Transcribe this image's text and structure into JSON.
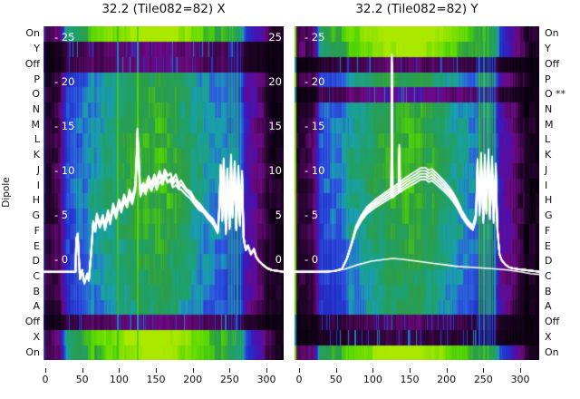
{
  "titles": {
    "left": "32.2 (Tile082=82) X",
    "right": "32.2 (Tile082=82) Y"
  },
  "axes": {
    "y_label": "Dipole",
    "x_tick_labels": [
      "0",
      "50",
      "100",
      "150",
      "200",
      "250",
      "300"
    ],
    "x_tick_values": [
      0,
      50,
      100,
      150,
      200,
      250,
      300
    ],
    "y_tick_labels_inner_left": [
      "- 25",
      "- 20",
      "- 15",
      "- 10",
      "- 5",
      "- 0"
    ],
    "y_tick_labels_inner_right": [
      "25",
      "20",
      "15",
      "10",
      "5",
      "0"
    ],
    "y_tick_values": [
      25,
      20,
      15,
      10,
      5,
      0
    ]
  },
  "row_labels_left": [
    "On",
    "Y",
    "Off",
    "P",
    "O",
    "N",
    "M",
    "L",
    "K",
    "J",
    "I",
    "H",
    "G",
    "F",
    "E",
    "D",
    "C",
    "B",
    "A",
    "Off",
    "X",
    "On"
  ],
  "row_labels_right": [
    "On",
    "Y",
    "Off",
    "P",
    "O **",
    "N",
    "M",
    "L",
    "K",
    "J",
    "I",
    "H",
    "G",
    "F",
    "E",
    "D",
    "C",
    "B",
    "A",
    "Off",
    "X",
    "On"
  ],
  "flagged_dipole": "O **",
  "colors": {
    "background": "#ffffff",
    "curve": "#ffffff",
    "label": "#111111",
    "colormap_stops": [
      [
        0.0,
        "#06010a"
      ],
      [
        0.1,
        "#24042c"
      ],
      [
        0.22,
        "#6e0a80"
      ],
      [
        0.3,
        "#4a10b0"
      ],
      [
        0.4,
        "#2030c8"
      ],
      [
        0.48,
        "#2f55e0"
      ],
      [
        0.56,
        "#18a0b0"
      ],
      [
        0.64,
        "#1fa06a"
      ],
      [
        0.72,
        "#2e9e44"
      ],
      [
        0.82,
        "#52d800"
      ],
      [
        1.0,
        "#aae800"
      ]
    ]
  },
  "chart_data": [
    {
      "type": "heatmap",
      "panel": "X",
      "title": "32.2 (Tile082=82) X",
      "x_range": [
        -3,
        324
      ],
      "y_rows": [
        "On",
        "Y",
        "Off",
        "P",
        "O",
        "N",
        "M",
        "L",
        "K",
        "J",
        "I",
        "H",
        "G",
        "F",
        "E",
        "D",
        "C",
        "B",
        "A",
        "Off",
        "X",
        "On"
      ],
      "row_gains": [
        1.45,
        0.3,
        0.3,
        0.97,
        0.99,
        1.0,
        1.02,
        1.03,
        1.04,
        1.05,
        1.05,
        1.04,
        1.02,
        1.0,
        0.98,
        0.96,
        0.94,
        0.92,
        0.9,
        0.3,
        1.45,
        1.38
      ],
      "intensity_profile": [
        [
          -6,
          0.1
        ],
        [
          5,
          0.12
        ],
        [
          18,
          0.14
        ],
        [
          24,
          0.3
        ],
        [
          28,
          0.44
        ],
        [
          40,
          0.48
        ],
        [
          55,
          0.5
        ],
        [
          65,
          0.56
        ],
        [
          75,
          0.58
        ],
        [
          90,
          0.62
        ],
        [
          105,
          0.66
        ],
        [
          120,
          0.7
        ],
        [
          135,
          0.72
        ],
        [
          150,
          0.74
        ],
        [
          165,
          0.72
        ],
        [
          180,
          0.68
        ],
        [
          195,
          0.62
        ],
        [
          210,
          0.58
        ],
        [
          225,
          0.55
        ],
        [
          235,
          0.52
        ],
        [
          245,
          0.5
        ],
        [
          255,
          0.52
        ],
        [
          265,
          0.45
        ],
        [
          272,
          0.3
        ],
        [
          280,
          0.26
        ],
        [
          290,
          0.2
        ],
        [
          300,
          0.12
        ],
        [
          308,
          0.05
        ],
        [
          326,
          0.04
        ]
      ],
      "stripes": [
        [
          -2,
          1.4,
          0.5
        ],
        [
          98,
          2,
          0.75
        ],
        [
          125,
          2,
          0.78
        ],
        [
          248,
          1.4,
          0.6
        ],
        [
          252,
          1.4,
          0.62
        ],
        [
          256,
          1.4,
          0.58
        ],
        [
          260,
          1.4,
          0.6
        ],
        [
          264,
          1.4,
          0.55
        ]
      ],
      "series": [
        {
          "name": "dipole-bandpass-bundle",
          "traces": 4,
          "jitter": 0.25,
          "line_width": 2,
          "points": [
            [
              -2,
              -1.4
            ],
            [
              41,
              -1.4
            ],
            [
              42,
              2.4
            ],
            [
              44,
              2.9
            ],
            [
              47,
              -2.2
            ],
            [
              50,
              -1.2
            ],
            [
              53,
              -2.7
            ],
            [
              57,
              -1.6
            ],
            [
              59,
              -2.4
            ],
            [
              62,
              0.6
            ],
            [
              65,
              4.3
            ],
            [
              68,
              3.5
            ],
            [
              70,
              5.2
            ],
            [
              74,
              3.9
            ],
            [
              78,
              5.1
            ],
            [
              81,
              3.7
            ],
            [
              85,
              5.5
            ],
            [
              88,
              4.5
            ],
            [
              92,
              6.2
            ],
            [
              96,
              5.2
            ],
            [
              100,
              6.9
            ],
            [
              103,
              5.9
            ],
            [
              107,
              7.2
            ],
            [
              111,
              6.5
            ],
            [
              114,
              7.8
            ],
            [
              118,
              6.9
            ],
            [
              122,
              8.3
            ],
            [
              124,
              11.8
            ],
            [
              125,
              14.7
            ],
            [
              127,
              11.3
            ],
            [
              129,
              7.8
            ],
            [
              133,
              8.8
            ],
            [
              136,
              8.1
            ],
            [
              140,
              9.2
            ],
            [
              144,
              8.5
            ],
            [
              148,
              9.6
            ],
            [
              151,
              8.9
            ],
            [
              155,
              10.0
            ],
            [
              159,
              9.2
            ],
            [
              162,
              10.2
            ],
            [
              166,
              9.5
            ],
            [
              170,
              9.8
            ],
            [
              173,
              9.1
            ],
            [
              177,
              9.4
            ],
            [
              181,
              8.6
            ],
            [
              184,
              8.9
            ],
            [
              191,
              8.1
            ],
            [
              197,
              7.6
            ],
            [
              203,
              6.9
            ],
            [
              209,
              6.3
            ],
            [
              215,
              5.7
            ],
            [
              221,
              5.1
            ],
            [
              228,
              4.4
            ],
            [
              231,
              3.9
            ],
            [
              234,
              3.2
            ],
            [
              236,
              5.7
            ],
            [
              238,
              10.8
            ],
            [
              240,
              4.7
            ],
            [
              242,
              11.3
            ],
            [
              245,
              3.2
            ],
            [
              247,
              10.3
            ],
            [
              250,
              3.7
            ],
            [
              252,
              11.6
            ],
            [
              254,
              5.2
            ],
            [
              257,
              11.0
            ],
            [
              259,
              3.7
            ],
            [
              262,
              10.6
            ],
            [
              264,
              4.2
            ],
            [
              267,
              9.8
            ],
            [
              269,
              2.5
            ],
            [
              272,
              1.1
            ],
            [
              275,
              1.6
            ],
            [
              279,
              0.6
            ],
            [
              283,
              1.2
            ],
            [
              286,
              0.3
            ],
            [
              290,
              -0.2
            ],
            [
              295,
              -0.6
            ],
            [
              301,
              -1.0
            ],
            [
              307,
              -1.2
            ],
            [
              315,
              -1.3
            ],
            [
              323,
              -1.4
            ]
          ]
        }
      ]
    },
    {
      "type": "heatmap",
      "panel": "Y",
      "title": "32.2 (Tile082=82) Y",
      "x_range": [
        -6,
        326
      ],
      "y_rows": [
        "On",
        "Y",
        "Off",
        "P",
        "O",
        "N",
        "M",
        "L",
        "K",
        "J",
        "I",
        "H",
        "G",
        "F",
        "E",
        "D",
        "C",
        "B",
        "A",
        "Off",
        "X",
        "On"
      ],
      "row_gains": [
        1.5,
        1.4,
        0.25,
        1.0,
        0.35,
        1.02,
        1.03,
        1.04,
        1.05,
        1.05,
        1.04,
        1.03,
        1.01,
        0.99,
        0.97,
        0.95,
        0.93,
        0.92,
        0.9,
        0.25,
        0.18,
        1.45
      ],
      "intensity_profile": [
        [
          -6,
          0.1
        ],
        [
          5,
          0.12
        ],
        [
          18,
          0.14
        ],
        [
          24,
          0.3
        ],
        [
          28,
          0.44
        ],
        [
          40,
          0.48
        ],
        [
          55,
          0.5
        ],
        [
          65,
          0.56
        ],
        [
          75,
          0.58
        ],
        [
          90,
          0.62
        ],
        [
          105,
          0.66
        ],
        [
          120,
          0.7
        ],
        [
          135,
          0.72
        ],
        [
          150,
          0.74
        ],
        [
          165,
          0.72
        ],
        [
          180,
          0.68
        ],
        [
          195,
          0.62
        ],
        [
          210,
          0.58
        ],
        [
          225,
          0.55
        ],
        [
          235,
          0.52
        ],
        [
          245,
          0.5
        ],
        [
          255,
          0.52
        ],
        [
          265,
          0.45
        ],
        [
          272,
          0.3
        ],
        [
          280,
          0.26
        ],
        [
          290,
          0.2
        ],
        [
          300,
          0.12
        ],
        [
          308,
          0.05
        ],
        [
          326,
          0.04
        ]
      ],
      "stripes": [
        [
          -6,
          2.4,
          0.85
        ],
        [
          244,
          1.8,
          0.72
        ],
        [
          247,
          1.8,
          0.62
        ],
        [
          250,
          1.8,
          0.75
        ],
        [
          253,
          1.8,
          0.6
        ],
        [
          256,
          1.8,
          0.78
        ],
        [
          259,
          1.8,
          0.62
        ],
        [
          262,
          1.8,
          0.7
        ],
        [
          265,
          1.8,
          0.6
        ]
      ],
      "series": [
        {
          "name": "dipole-bandpass-bundle",
          "traces": 5,
          "jitter": 0,
          "line_width": 1.8,
          "points": [
            [
              -6,
              -1.4
            ],
            [
              37,
              -1.4
            ],
            [
              49,
              -1.3
            ],
            [
              58,
              -1.1
            ],
            [
              65,
              0.1
            ],
            [
              71,
              1.8
            ],
            [
              77,
              3.7
            ],
            [
              84,
              4.9
            ],
            [
              92,
              5.9
            ],
            [
              103,
              6.7
            ],
            [
              113,
              7.3
            ],
            [
              120,
              7.7
            ],
            [
              125,
              8.0
            ],
            [
              126,
              23.1
            ],
            [
              127,
              8.0
            ],
            [
              132,
              8.4
            ],
            [
              135,
              8.6
            ],
            [
              136,
              12.9
            ],
            [
              137,
              8.7
            ],
            [
              143,
              9.1
            ],
            [
              150,
              9.5
            ],
            [
              158,
              9.9
            ],
            [
              165,
              10.3
            ],
            [
              172,
              10.3
            ],
            [
              176,
              10.0
            ],
            [
              180,
              10.2
            ],
            [
              185,
              9.8
            ],
            [
              190,
              9.4
            ],
            [
              197,
              8.8
            ],
            [
              204,
              8.1
            ],
            [
              209,
              7.5
            ],
            [
              215,
              6.6
            ],
            [
              221,
              5.5
            ],
            [
              228,
              4.5
            ],
            [
              233,
              4.0
            ],
            [
              236,
              3.8
            ],
            [
              240,
              5.2
            ],
            [
              242,
              11.3
            ],
            [
              245,
              5.7
            ],
            [
              247,
              12.0
            ],
            [
              250,
              4.7
            ],
            [
              252,
              11.8
            ],
            [
              254,
              5.9
            ],
            [
              257,
              12.4
            ],
            [
              259,
              5.2
            ],
            [
              262,
              11.6
            ],
            [
              264,
              4.7
            ],
            [
              267,
              10.8
            ],
            [
              269,
              3.7
            ],
            [
              272,
              0.6
            ],
            [
              275,
              -0.1
            ],
            [
              280,
              -0.6
            ],
            [
              285,
              -0.9
            ],
            [
              290,
              -1.0
            ],
            [
              298,
              -1.1
            ],
            [
              307,
              -1.2
            ],
            [
              317,
              -1.3
            ],
            [
              326,
              -1.4
            ]
          ]
        },
        {
          "name": "reference-curve",
          "traces": 1,
          "jitter": 0,
          "line_width": 1.6,
          "points": [
            [
              -6,
              -1.4
            ],
            [
              37,
              -1.4
            ],
            [
              62,
              -1.1
            ],
            [
              80,
              -0.6
            ],
            [
              98,
              -0.2
            ],
            [
              117,
              0.0
            ],
            [
              127,
              0.1
            ],
            [
              141,
              0.0
            ],
            [
              160,
              -0.2
            ],
            [
              178,
              -0.4
            ],
            [
              197,
              -0.6
            ],
            [
              215,
              -0.8
            ],
            [
              234,
              -0.9
            ],
            [
              252,
              -1.0
            ],
            [
              270,
              -1.1
            ],
            [
              283,
              -1.2
            ],
            [
              301,
              -1.4
            ],
            [
              314,
              -1.6
            ],
            [
              326,
              -1.7
            ]
          ]
        }
      ]
    }
  ]
}
